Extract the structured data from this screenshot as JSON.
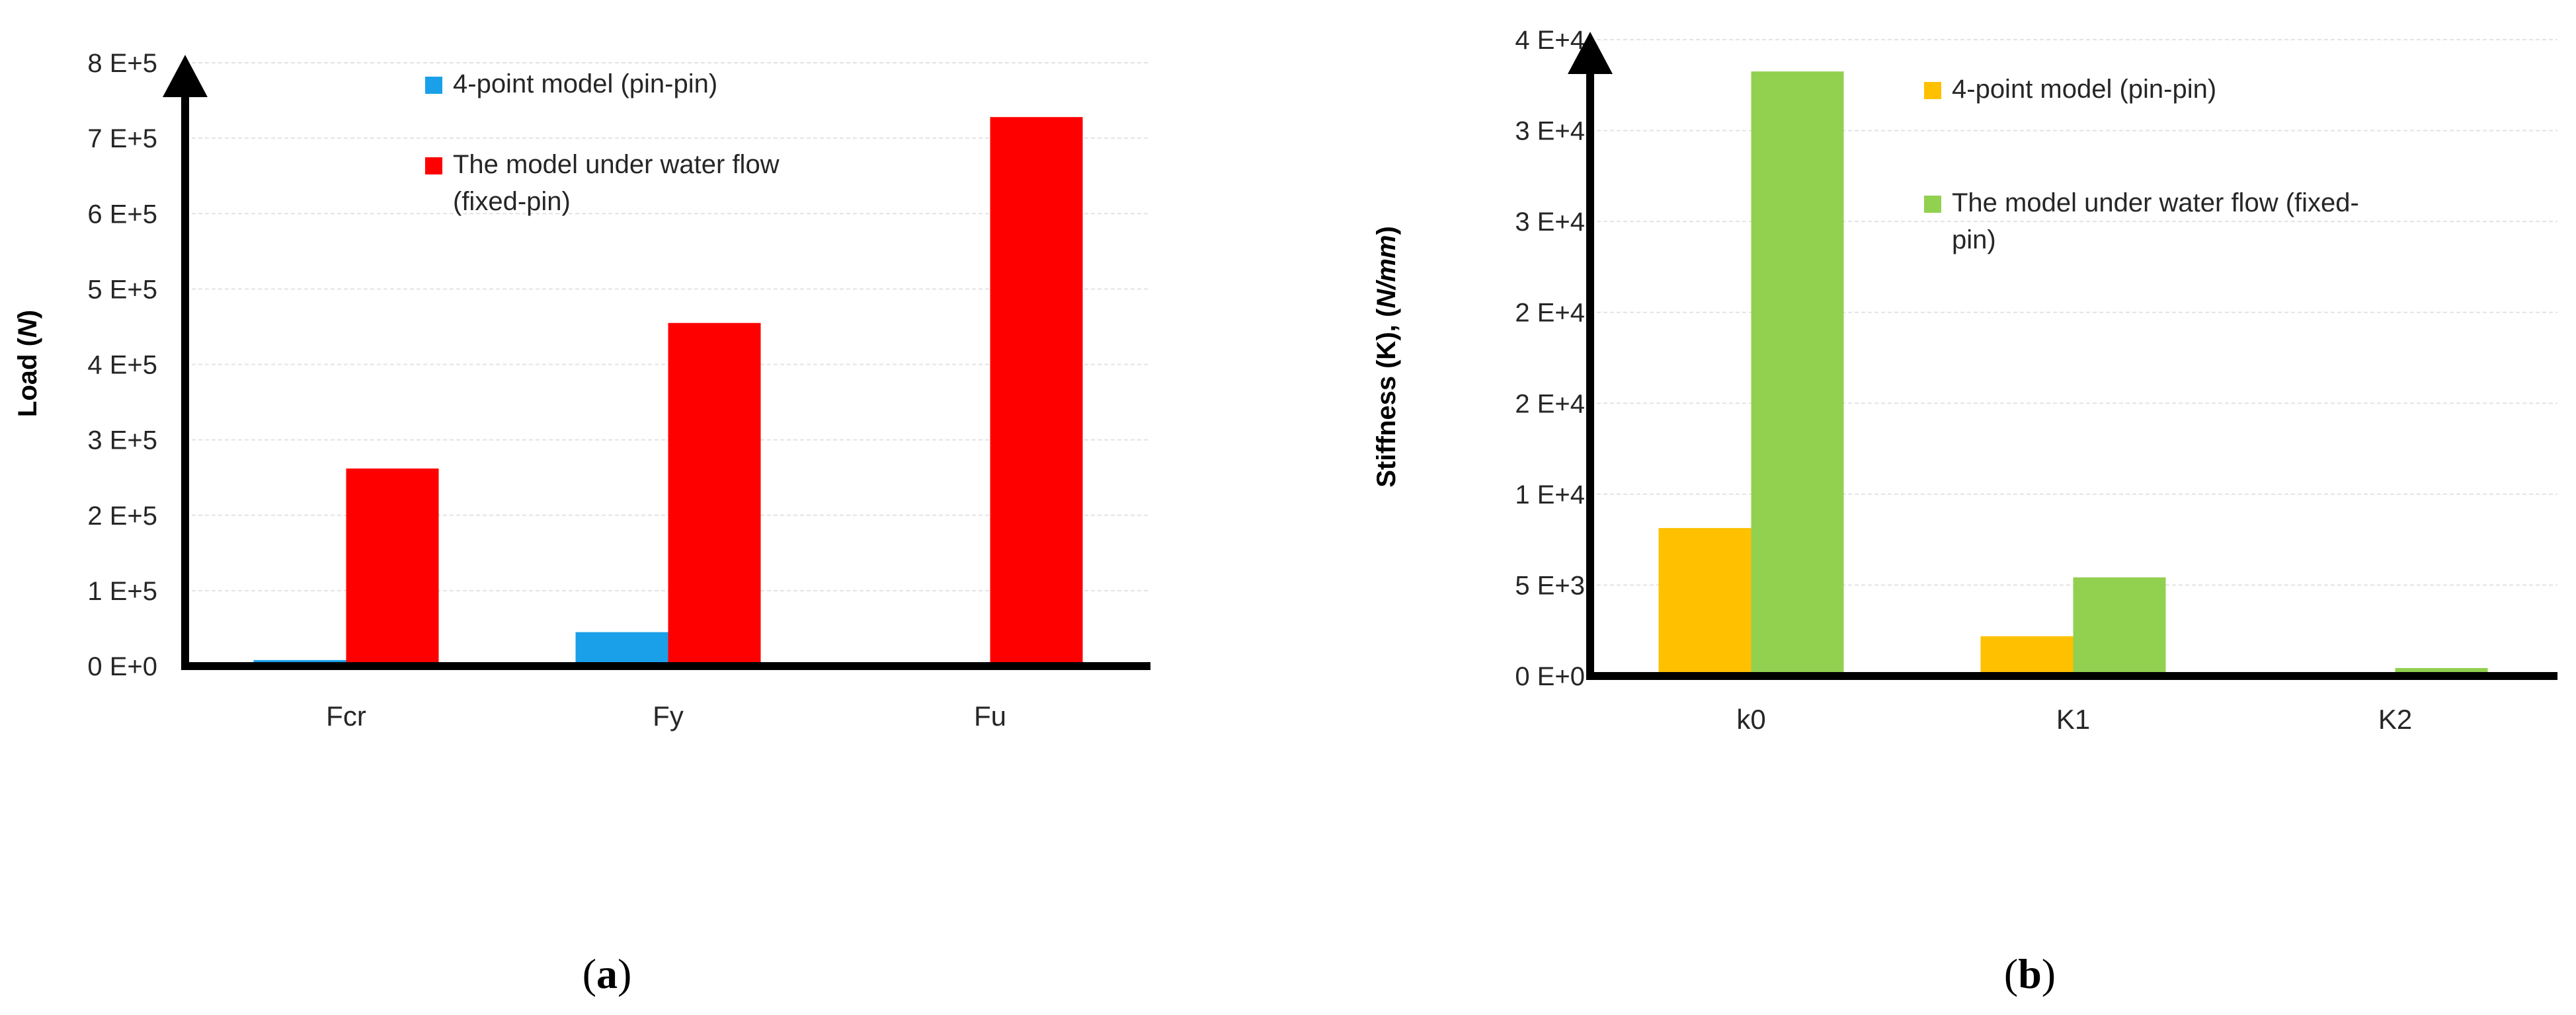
{
  "chart_data": [
    {
      "type": "bar",
      "ylabel": "Load (N)",
      "ylim": [
        0,
        800000
      ],
      "yticks": [
        "0 E+0",
        "1 E+5",
        "2 E+5",
        "3 E+5",
        "4 E+5",
        "5 E+5",
        "6 E+5",
        "7 E+5",
        "8 E+5"
      ],
      "categories": [
        "Fcr",
        "Fy",
        "Fu"
      ],
      "grid": true,
      "legend_position": "top",
      "series": [
        {
          "name": "4-point model (pin-pin)",
          "color": "#1aa0e8",
          "values": [
            8000,
            45000,
            0
          ]
        },
        {
          "name": "The model under water flow (fixed-pin)",
          "color": "#ff0000",
          "values": [
            262000,
            455000,
            728000
          ]
        }
      ],
      "caption": "(a)"
    },
    {
      "type": "bar",
      "ylabel": "Stiffness (K), (N/mm)",
      "ylim": [
        0,
        40000
      ],
      "yticks": [
        "0 E+0",
        "5 E+3",
        "1 E+4",
        "2 E+4",
        "2 E+4",
        "3 E+4",
        "3 E+4",
        "4 E+4"
      ],
      "categories": [
        "k0",
        "K1",
        "K2"
      ],
      "grid": true,
      "legend_position": "top",
      "series": [
        {
          "name": "4-point model (pin-pin)",
          "color": "#ffc000",
          "values": [
            9300,
            2500,
            0
          ]
        },
        {
          "name": "The model under water flow (fixed-pin)",
          "color": "#92d050",
          "values": [
            38000,
            6200,
            500
          ]
        }
      ],
      "caption": "(b)"
    }
  ]
}
